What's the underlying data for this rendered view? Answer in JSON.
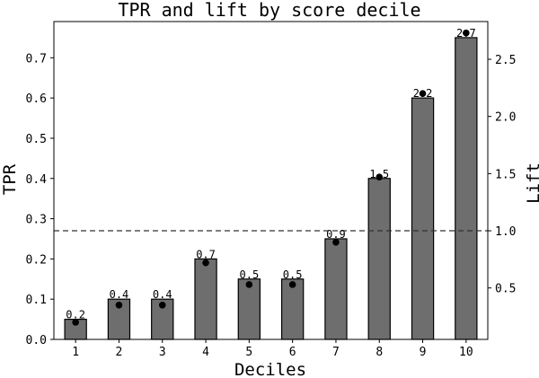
{
  "chart_data": {
    "type": "bar",
    "title": "TPR and lift by score decile",
    "xlabel": "Deciles",
    "ylabel": "TPR",
    "y2label": "Lift",
    "categories": [
      "1",
      "2",
      "3",
      "4",
      "5",
      "6",
      "7",
      "8",
      "9",
      "10"
    ],
    "series": [
      {
        "values": [
          0.05,
          0.1,
          0.1,
          0.2,
          0.15,
          0.15,
          0.25,
          0.4,
          0.6,
          0.75
        ],
        "chart_type": "bar",
        "axis": "left",
        "color": "#6e6e6e"
      },
      {
        "values": [
          0.2,
          0.35,
          0.35,
          0.72,
          0.53,
          0.53,
          0.9,
          1.47,
          2.2,
          2.73
        ],
        "chart_type": "scatter",
        "axis": "right",
        "color": "#000000"
      }
    ],
    "data_labels": [
      "0.2",
      "0.4",
      "0.4",
      "0.7",
      "0.5",
      "0.5",
      "0.9",
      "1.5",
      "2.2",
      "2.7"
    ],
    "reference_line": {
      "axis": "right",
      "value": 1.0,
      "style": "dashed"
    },
    "ylim": [
      0,
      0.79
    ],
    "y2lim": [
      0.05,
      2.83
    ],
    "yticks": [
      0.0,
      0.1,
      0.2,
      0.3,
      0.4,
      0.5,
      0.6,
      0.7
    ],
    "y2ticks": [
      0.5,
      1.0,
      1.5,
      2.0,
      2.5
    ],
    "grid": false,
    "legend": "none"
  }
}
